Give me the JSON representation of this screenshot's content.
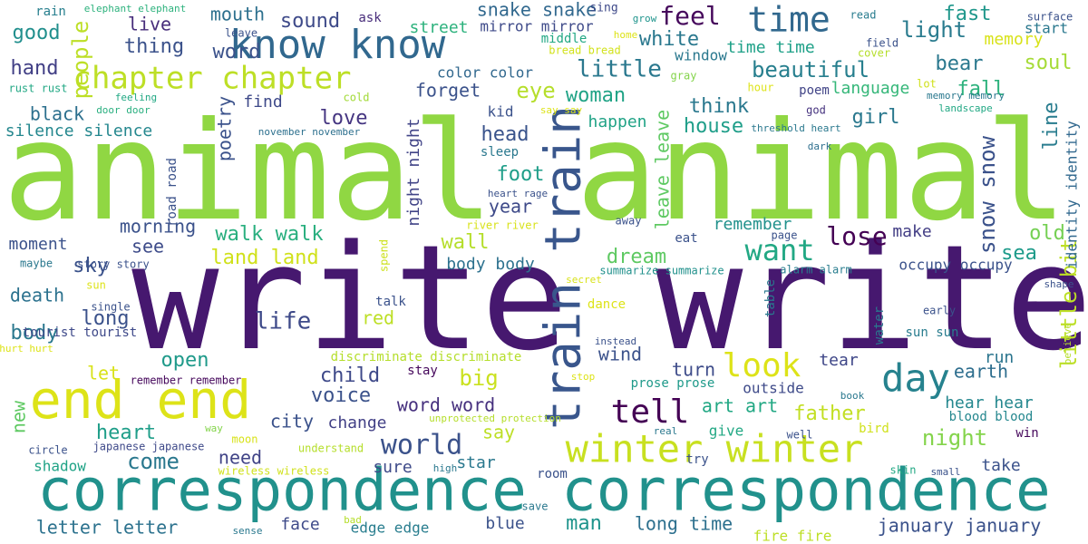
{
  "words": [
    {
      "text": "write write",
      "color": "#46186f"
    },
    {
      "text": "animal animal",
      "color": "#90d743"
    },
    {
      "text": "correspondence correspondence",
      "color": "#21918c"
    },
    {
      "text": "end end",
      "color": "#dde318"
    },
    {
      "text": "train train",
      "color": "#39568c"
    },
    {
      "text": "know know",
      "color": "#31688e"
    },
    {
      "text": "winter winter",
      "color": "#c8e020"
    },
    {
      "text": "chapter chapter",
      "color": "#bddf26"
    },
    {
      "text": "day",
      "color": "#26828e"
    },
    {
      "text": "time",
      "color": "#31688e"
    },
    {
      "text": "look",
      "color": "#dde318"
    },
    {
      "text": "tell",
      "color": "#440154"
    },
    {
      "text": "want",
      "color": "#22a884"
    },
    {
      "text": "world",
      "color": "#3b528b"
    },
    {
      "text": "lose",
      "color": "#440154"
    },
    {
      "text": "little bit",
      "color": "#bddf26"
    },
    {
      "text": "snow snow",
      "color": "#3b528b"
    },
    {
      "text": "people",
      "color": "#bddf26"
    },
    {
      "text": "feel",
      "color": "#46085c"
    },
    {
      "text": "eye",
      "color": "#b5de2b"
    },
    {
      "text": "white",
      "color": "#2a788e"
    },
    {
      "text": "little",
      "color": "#2a788e"
    },
    {
      "text": "good",
      "color": "#218f8d"
    },
    {
      "text": "hand",
      "color": "#424086"
    },
    {
      "text": "thing",
      "color": "#3b528b"
    },
    {
      "text": "word",
      "color": "#3b528b"
    },
    {
      "text": "live",
      "color": "#472d7b"
    },
    {
      "text": "mouth",
      "color": "#2d708e"
    },
    {
      "text": "sound",
      "color": "#3e4a89"
    },
    {
      "text": "snake snake",
      "color": "#31688e"
    },
    {
      "text": "fast",
      "color": "#1f978b"
    },
    {
      "text": "light",
      "color": "#297b8e"
    },
    {
      "text": "beautiful",
      "color": "#277f8e"
    },
    {
      "text": "soul",
      "color": "#a5db36"
    },
    {
      "text": "bear",
      "color": "#2a788e"
    },
    {
      "text": "fall",
      "color": "#2db27d"
    },
    {
      "text": "memory",
      "color": "#d8e219"
    },
    {
      "text": "start",
      "color": "#2a788e"
    },
    {
      "text": "forget",
      "color": "#3b528b"
    },
    {
      "text": "woman",
      "color": "#20a386"
    },
    {
      "text": "think",
      "color": "#2a788e"
    },
    {
      "text": "house",
      "color": "#1f9e89"
    },
    {
      "text": "language",
      "color": "#35b779"
    },
    {
      "text": "girl",
      "color": "#2a788e"
    },
    {
      "text": "line",
      "color": "#287c8e"
    },
    {
      "text": "black",
      "color": "#2d708e"
    },
    {
      "text": "love",
      "color": "#453581"
    },
    {
      "text": "head",
      "color": "#3a548c"
    },
    {
      "text": "foot",
      "color": "#1f9e89"
    },
    {
      "text": "year",
      "color": "#3e4a89"
    },
    {
      "text": "poetry",
      "color": "#3b528b"
    },
    {
      "text": "find",
      "color": "#3e4989"
    },
    {
      "text": "silence silence",
      "color": "#24878e"
    },
    {
      "text": "night night",
      "color": "#414487"
    },
    {
      "text": "leave leave",
      "color": "#5ec962"
    },
    {
      "text": "happen",
      "color": "#20a386"
    },
    {
      "text": "morning",
      "color": "#3b528b"
    },
    {
      "text": "walk walk",
      "color": "#29af7f"
    },
    {
      "text": "see",
      "color": "#3e4c8a"
    },
    {
      "text": "land land",
      "color": "#d0e11c"
    },
    {
      "text": "remember",
      "color": "#21918c"
    },
    {
      "text": "make",
      "color": "#433e85"
    },
    {
      "text": "old",
      "color": "#75d054"
    },
    {
      "text": "sea",
      "color": "#1e9b8a"
    },
    {
      "text": "sky",
      "color": "#3b528b"
    },
    {
      "text": "moment",
      "color": "#3b528b"
    },
    {
      "text": "wall",
      "color": "#b5de2b"
    },
    {
      "text": "dream",
      "color": "#5ec962"
    },
    {
      "text": "body body",
      "color": "#2c718e"
    },
    {
      "text": "occupy occupy",
      "color": "#3b528b"
    },
    {
      "text": "death",
      "color": "#2c728e"
    },
    {
      "text": "life",
      "color": "#3e4a89"
    },
    {
      "text": "long",
      "color": "#3b528b"
    },
    {
      "text": "red",
      "color": "#bddf26"
    },
    {
      "text": "body",
      "color": "#2a788e"
    },
    {
      "text": "open",
      "color": "#1f9a8a"
    },
    {
      "text": "let",
      "color": "#d8e219"
    },
    {
      "text": "child",
      "color": "#3e4989"
    },
    {
      "text": "big",
      "color": "#cae11f"
    },
    {
      "text": "turn",
      "color": "#3e4c8a"
    },
    {
      "text": "earth",
      "color": "#2e6e8e"
    },
    {
      "text": "tear",
      "color": "#3f4788"
    },
    {
      "text": "run",
      "color": "#2b758e"
    },
    {
      "text": "wind",
      "color": "#3b528b"
    },
    {
      "text": "voice",
      "color": "#3b528b"
    },
    {
      "text": "word word",
      "color": "#46307e"
    },
    {
      "text": "art art",
      "color": "#22a884"
    },
    {
      "text": "father",
      "color": "#c2df23"
    },
    {
      "text": "hear hear",
      "color": "#24878e"
    },
    {
      "text": "new",
      "color": "#5ec962"
    },
    {
      "text": "heart",
      "color": "#1f9e89"
    },
    {
      "text": "city",
      "color": "#3b528b"
    },
    {
      "text": "change",
      "color": "#424086"
    },
    {
      "text": "say",
      "color": "#bddf26"
    },
    {
      "text": "night",
      "color": "#84d44b"
    },
    {
      "text": "come",
      "color": "#2a788e"
    },
    {
      "text": "need",
      "color": "#414487"
    },
    {
      "text": "sure",
      "color": "#3e4a89"
    },
    {
      "text": "take",
      "color": "#3b528b"
    },
    {
      "text": "star",
      "color": "#2a788e"
    },
    {
      "text": "shadow",
      "color": "#20a386"
    },
    {
      "text": "man",
      "color": "#1f948c"
    },
    {
      "text": "blue",
      "color": "#3b528b"
    },
    {
      "text": "long time",
      "color": "#2d708e"
    },
    {
      "text": "letter letter",
      "color": "#2c728e"
    },
    {
      "text": "face",
      "color": "#3e4a89"
    },
    {
      "text": "edge edge",
      "color": "#287d8e"
    },
    {
      "text": "january january",
      "color": "#3b528b"
    },
    {
      "text": "fire fire",
      "color": "#bddf26"
    },
    {
      "text": "identity identity",
      "color": "#31688e"
    },
    {
      "text": "elephant elephant",
      "color": "#2db27d"
    },
    {
      "text": "rain",
      "color": "#277f8e"
    },
    {
      "text": "ask",
      "color": "#472c7a"
    },
    {
      "text": "sing",
      "color": "#3e4989"
    },
    {
      "text": "street",
      "color": "#2db27d"
    },
    {
      "text": "mirror mirror",
      "color": "#3e4a89"
    },
    {
      "text": "middle",
      "color": "#22a884"
    },
    {
      "text": "home",
      "color": "#dde318"
    },
    {
      "text": "bread bread",
      "color": "#d2e21b"
    },
    {
      "text": "color color",
      "color": "#31688e"
    },
    {
      "text": "grow",
      "color": "#1f948c"
    },
    {
      "text": "read",
      "color": "#287c8e"
    },
    {
      "text": "surface",
      "color": "#3b528b"
    },
    {
      "text": "window",
      "color": "#2a788e"
    },
    {
      "text": "time time",
      "color": "#1fa188"
    },
    {
      "text": "field",
      "color": "#3b528b"
    },
    {
      "text": "cover",
      "color": "#b5de2b"
    },
    {
      "text": "leave",
      "color": "#3b528b"
    },
    {
      "text": "gray",
      "color": "#84d44b"
    },
    {
      "text": "hour",
      "color": "#dde318"
    },
    {
      "text": "poem",
      "color": "#414487"
    },
    {
      "text": "lot",
      "color": "#d0e11c"
    },
    {
      "text": "memory memory",
      "color": "#2a788e"
    },
    {
      "text": "landscape",
      "color": "#22a884"
    },
    {
      "text": "rust rust",
      "color": "#22a884"
    },
    {
      "text": "feeling",
      "color": "#22a884"
    },
    {
      "text": "cold",
      "color": "#a2da37"
    },
    {
      "text": "door door",
      "color": "#29af7f"
    },
    {
      "text": "kid",
      "color": "#3b528b"
    },
    {
      "text": "say say",
      "color": "#dde318"
    },
    {
      "text": "god",
      "color": "#46337f"
    },
    {
      "text": "threshold heart",
      "color": "#2a788e"
    },
    {
      "text": "dark",
      "color": "#2e6f8e"
    },
    {
      "text": "november november",
      "color": "#2d708e"
    },
    {
      "text": "road road",
      "color": "#3b528b"
    },
    {
      "text": "sleep",
      "color": "#2a788e"
    },
    {
      "text": "heart rage",
      "color": "#3b528b"
    },
    {
      "text": "away",
      "color": "#3b528b"
    },
    {
      "text": "river river",
      "color": "#d8e219"
    },
    {
      "text": "page",
      "color": "#3b528b"
    },
    {
      "text": "eat",
      "color": "#3b528b"
    },
    {
      "text": "maybe",
      "color": "#2a788e"
    },
    {
      "text": "story story",
      "color": "#3b528b"
    },
    {
      "text": "spend",
      "color": "#cde11d"
    },
    {
      "text": "summarize summarize",
      "color": "#21918c"
    },
    {
      "text": "alarm alarm",
      "color": "#287d8e"
    },
    {
      "text": "sun",
      "color": "#dde318"
    },
    {
      "text": "secret",
      "color": "#d8e219"
    },
    {
      "text": "single",
      "color": "#3b528b"
    },
    {
      "text": "talk",
      "color": "#3b528b"
    },
    {
      "text": "dance",
      "color": "#dde318"
    },
    {
      "text": "table",
      "color": "#2a788e"
    },
    {
      "text": "early",
      "color": "#3b528b"
    },
    {
      "text": "shape",
      "color": "#3b528b"
    },
    {
      "text": "tourist tourist",
      "color": "#3e4989"
    },
    {
      "text": "discriminate discriminate",
      "color": "#b5de2b"
    },
    {
      "text": "instead",
      "color": "#3b528b"
    },
    {
      "text": "water",
      "color": "#2a788e"
    },
    {
      "text": "sun sun",
      "color": "#287c8e"
    },
    {
      "text": "hurt hurt",
      "color": "#dde318"
    },
    {
      "text": "remember remember",
      "color": "#46085c"
    },
    {
      "text": "stay",
      "color": "#46085c"
    },
    {
      "text": "stop",
      "color": "#dde318"
    },
    {
      "text": "prose prose",
      "color": "#1f9a8a"
    },
    {
      "text": "outside",
      "color": "#3e4a89"
    },
    {
      "text": "believe",
      "color": "#b5de2b"
    },
    {
      "text": "book",
      "color": "#2a788e"
    },
    {
      "text": "way",
      "color": "#84d44b"
    },
    {
      "text": "unprotected protection",
      "color": "#b5de2b"
    },
    {
      "text": "real",
      "color": "#2a788e"
    },
    {
      "text": "give",
      "color": "#22a884"
    },
    {
      "text": "well",
      "color": "#3b528b"
    },
    {
      "text": "bird",
      "color": "#d0e11c"
    },
    {
      "text": "blood blood",
      "color": "#24878e"
    },
    {
      "text": "win",
      "color": "#46085c"
    },
    {
      "text": "circle",
      "color": "#3b528b"
    },
    {
      "text": "japanese japanese",
      "color": "#3e4989"
    },
    {
      "text": "moon",
      "color": "#d8e219"
    },
    {
      "text": "understand",
      "color": "#b5de2b"
    },
    {
      "text": "try",
      "color": "#3b528b"
    },
    {
      "text": "wireless wireless",
      "color": "#d0e11c"
    },
    {
      "text": "high",
      "color": "#2a788e"
    },
    {
      "text": "room",
      "color": "#3b528b"
    },
    {
      "text": "skin",
      "color": "#22a884"
    },
    {
      "text": "small",
      "color": "#3b528b"
    },
    {
      "text": "save",
      "color": "#2a788e"
    },
    {
      "text": "bad",
      "color": "#b5de2b"
    },
    {
      "text": "sense",
      "color": "#2a788e"
    }
  ]
}
